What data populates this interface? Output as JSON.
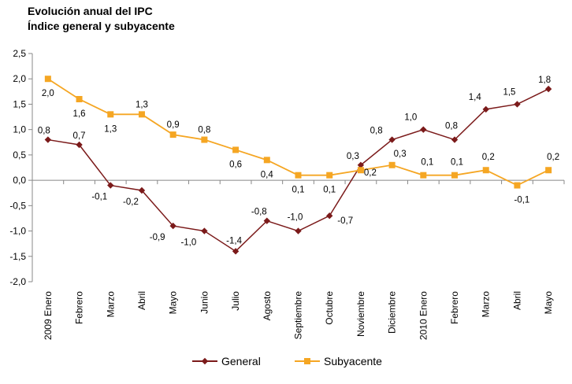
{
  "chart_data": {
    "type": "line",
    "title": "Evolución anual del IPC",
    "subtitle": "Índice general y subyacente",
    "categories": [
      "2009 Enero",
      "Febrero",
      "Marzo",
      "Abril",
      "Mayo",
      "Junio",
      "Julio",
      "Agosto",
      "Septiembre",
      "Octubre",
      "Noviembre",
      "Diciembre",
      "2010 Enero",
      "Febrero",
      "Marzo",
      "Abril",
      "Mayo"
    ],
    "series": [
      {
        "name": "General",
        "color": "#7b1a1a",
        "marker": "diamond",
        "values": [
          0.8,
          0.7,
          -0.1,
          -0.2,
          -0.9,
          -1.0,
          -1.4,
          -0.8,
          -1.0,
          -0.7,
          0.3,
          0.8,
          1.0,
          0.8,
          1.4,
          1.5,
          1.8
        ],
        "labels": [
          "0,8",
          "0,7",
          "-0,1",
          "-0,2",
          "-0,9",
          "-1,0",
          "-1,4",
          "-0,8",
          "-1,0",
          "-0,7",
          "0,3",
          "0,8",
          "1,0",
          "0,8",
          "1,4",
          "1,5",
          "1,8"
        ]
      },
      {
        "name": "Subyacente",
        "color": "#f5a623",
        "marker": "square",
        "values": [
          2.0,
          1.6,
          1.3,
          1.3,
          0.9,
          0.8,
          0.6,
          0.4,
          0.1,
          0.1,
          0.2,
          0.3,
          0.1,
          0.1,
          0.2,
          -0.1,
          0.2
        ],
        "labels": [
          "2,0",
          "1,6",
          "1,3",
          "1,3",
          "0,9",
          "0,8",
          "0,6",
          "0,4",
          "0,1",
          "0,1",
          "0,2",
          "0,3",
          "0,1",
          "0,1",
          "0,2",
          "-0,1",
          "0,2"
        ]
      }
    ],
    "ylim": [
      -2.0,
      2.5
    ],
    "yticks": [
      2.5,
      2.0,
      1.5,
      1.0,
      0.5,
      0.0,
      -0.5,
      -1.0,
      -1.5,
      -2.0
    ],
    "ytick_labels": [
      "2,5",
      "2,0",
      "1,5",
      "1,0",
      "0,5",
      "0,0",
      "-0,5",
      "-1,0",
      "-1,5",
      "-2,0"
    ],
    "xlabel": "",
    "ylabel": "",
    "grid": false,
    "legend": "bottom"
  }
}
